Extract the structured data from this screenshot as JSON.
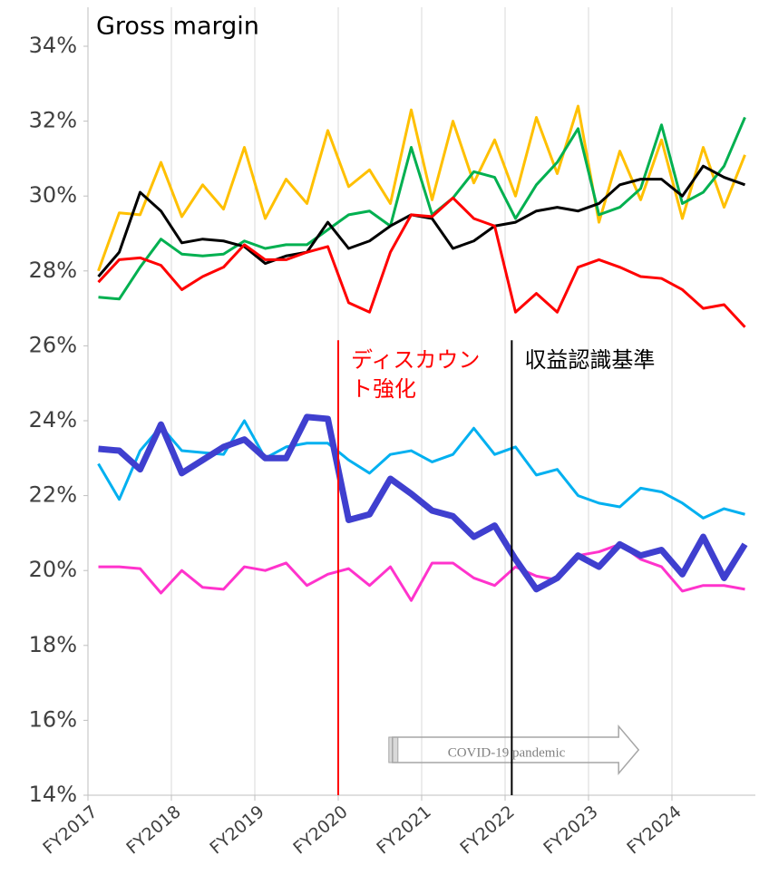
{
  "chart_data": {
    "type": "line",
    "title": "Gross margin",
    "x": [
      2017.125,
      2017.375,
      2017.625,
      2017.875,
      2018.125,
      2018.375,
      2018.625,
      2018.875,
      2019.125,
      2019.375,
      2019.625,
      2019.875,
      2020.125,
      2020.375,
      2020.625,
      2020.875,
      2021.125,
      2021.375,
      2021.625,
      2021.875,
      2022.125,
      2022.375,
      2022.625,
      2022.875,
      2023.125,
      2023.375,
      2023.625,
      2023.875,
      2024.125,
      2024.375,
      2024.625,
      2024.875
    ],
    "xlim": [
      2017,
      2025
    ],
    "xticks": [
      {
        "value": 2017,
        "label": "FY2017"
      },
      {
        "value": 2018,
        "label": "FY2018"
      },
      {
        "value": 2019,
        "label": "FY2019"
      },
      {
        "value": 2020,
        "label": "FY2020"
      },
      {
        "value": 2021,
        "label": "FY2021"
      },
      {
        "value": 2022,
        "label": "FY2022"
      },
      {
        "value": 2023,
        "label": "FY2023"
      },
      {
        "value": 2024,
        "label": "FY2024"
      }
    ],
    "ylim": [
      14,
      34
    ],
    "yticks": [
      {
        "value": 14,
        "label": "14%"
      },
      {
        "value": 16,
        "label": "16%"
      },
      {
        "value": 18,
        "label": "18%"
      },
      {
        "value": 20,
        "label": "20%"
      },
      {
        "value": 22,
        "label": "22%"
      },
      {
        "value": 24,
        "label": "24%"
      },
      {
        "value": 26,
        "label": "26%"
      },
      {
        "value": 28,
        "label": "28%"
      },
      {
        "value": 30,
        "label": "30%"
      },
      {
        "value": 32,
        "label": "32%"
      },
      {
        "value": 34,
        "label": "34%"
      }
    ],
    "xgrid": true,
    "series": [
      {
        "color": "#ffc000",
        "width": 3,
        "values": [
          28.0,
          29.55,
          29.5,
          30.9,
          29.45,
          30.3,
          29.65,
          31.3,
          29.4,
          30.45,
          29.8,
          31.75,
          30.25,
          30.7,
          29.8,
          32.3,
          29.9,
          32.0,
          30.35,
          31.5,
          30.0,
          32.1,
          30.6,
          32.4,
          29.3,
          31.2,
          29.9,
          31.5,
          29.4,
          31.3,
          29.7,
          31.1
        ]
      },
      {
        "color": "#00b050",
        "width": 3,
        "values": [
          27.3,
          27.25,
          28.1,
          28.85,
          28.45,
          28.4,
          28.45,
          28.8,
          28.6,
          28.7,
          28.7,
          29.1,
          29.5,
          29.6,
          29.2,
          31.3,
          29.5,
          29.95,
          30.65,
          30.5,
          29.4,
          30.3,
          30.9,
          31.8,
          29.5,
          29.7,
          30.2,
          31.9,
          29.8,
          30.1,
          30.8,
          32.1
        ]
      },
      {
        "color": "#000000",
        "width": 3,
        "values": [
          27.85,
          28.5,
          30.1,
          29.6,
          28.75,
          28.85,
          28.8,
          28.65,
          28.2,
          28.4,
          28.5,
          29.3,
          28.6,
          28.8,
          29.2,
          29.5,
          29.4,
          28.6,
          28.8,
          29.2,
          29.3,
          29.6,
          29.7,
          29.6,
          29.8,
          30.3,
          30.45,
          30.45,
          30.0,
          30.8,
          30.5,
          30.3
        ]
      },
      {
        "color": "#ff0000",
        "width": 3,
        "values": [
          27.7,
          28.3,
          28.35,
          28.15,
          27.5,
          27.85,
          28.1,
          28.7,
          28.3,
          28.3,
          28.5,
          28.65,
          27.15,
          26.9,
          28.5,
          29.5,
          29.45,
          29.95,
          29.4,
          29.2,
          26.9,
          27.4,
          26.9,
          28.1,
          28.3,
          28.1,
          27.85,
          27.8,
          27.5,
          27.0,
          27.1,
          26.5
        ]
      },
      {
        "color": "#00b0f0",
        "width": 3,
        "values": [
          22.85,
          21.9,
          23.2,
          23.85,
          23.2,
          23.15,
          23.1,
          24.0,
          23.0,
          23.3,
          23.4,
          23.4,
          22.95,
          22.6,
          23.1,
          23.2,
          22.9,
          23.1,
          23.8,
          23.1,
          23.3,
          22.55,
          22.7,
          22.0,
          21.8,
          21.7,
          22.2,
          22.1,
          21.8,
          21.4,
          21.65,
          21.5
        ]
      },
      {
        "color": "#ff33cc",
        "width": 3,
        "values": [
          20.1,
          20.1,
          20.05,
          19.4,
          20.0,
          19.55,
          19.5,
          20.1,
          20.0,
          20.2,
          19.6,
          19.9,
          20.05,
          19.6,
          20.1,
          19.2,
          20.2,
          20.2,
          19.8,
          19.6,
          20.1,
          19.85,
          19.75,
          20.4,
          20.5,
          20.7,
          20.3,
          20.1,
          19.45,
          19.6,
          19.6,
          19.5
        ]
      },
      {
        "color": "#3f3fcf",
        "width": 7,
        "values": [
          23.25,
          23.2,
          22.7,
          23.9,
          22.6,
          22.95,
          23.3,
          23.5,
          23.0,
          23.0,
          24.1,
          24.05,
          21.35,
          21.5,
          22.45,
          22.05,
          21.6,
          21.45,
          20.9,
          21.2,
          20.3,
          19.5,
          19.8,
          20.4,
          20.1,
          20.7,
          20.4,
          20.55,
          19.9,
          20.9,
          19.8,
          20.7
        ]
      }
    ],
    "vlines": [
      {
        "x": 2020,
        "color": "#ff0000",
        "label": "ディスカウント強化"
      },
      {
        "x": 2022.08,
        "color": "#000000",
        "label": "収益認識基準"
      }
    ],
    "span": {
      "from": 2020.65,
      "to": 2023.6,
      "label": "COVID-19 pandemic"
    }
  }
}
